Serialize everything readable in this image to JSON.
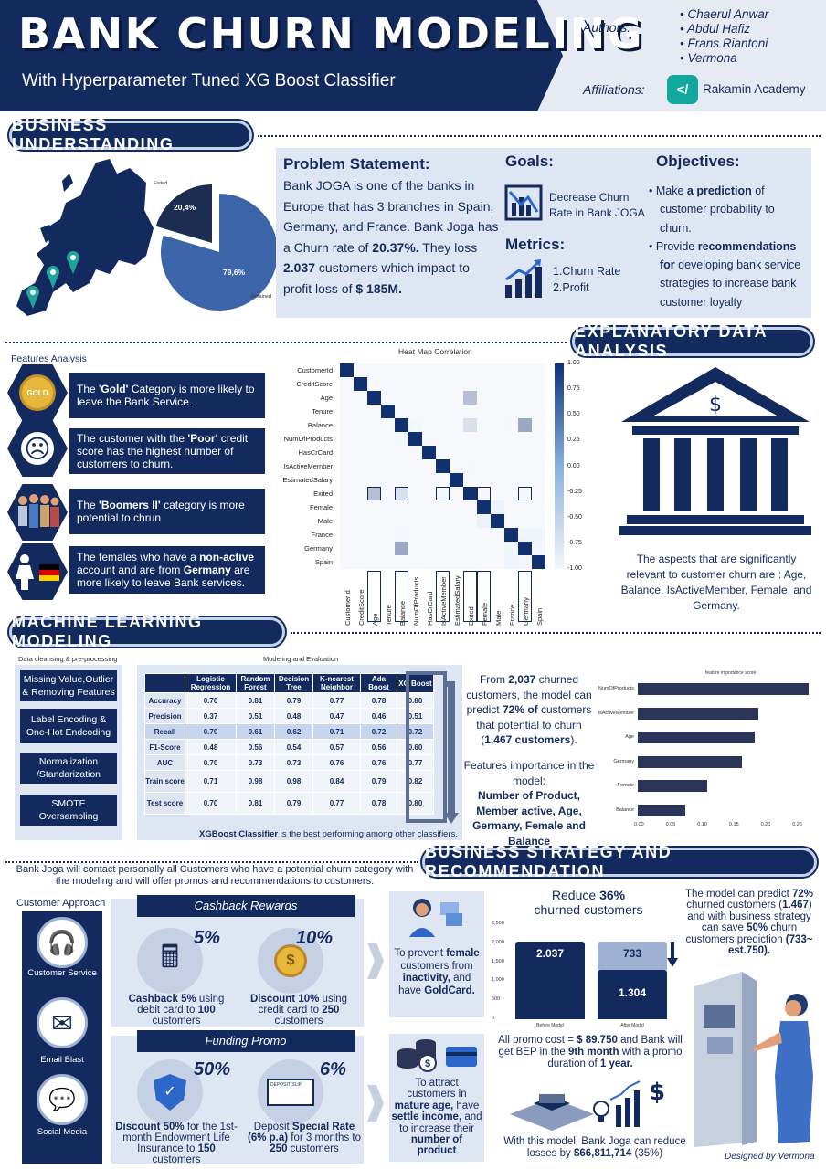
{
  "header": {
    "title": "BANK CHURN MODELING",
    "subtitle": "With Hyperparameter Tuned XG Boost Classifier",
    "authors_label": "Authors:",
    "authors": [
      "Chaerul Anwar",
      "Abdul Hafiz",
      "Frans Riantoni",
      "Vermona"
    ],
    "affiliations_label": "Affiliations:",
    "affiliation": "Rakamin Academy"
  },
  "sections": {
    "business": "BUSINESS UNDERSTANDING",
    "eda": "EXPLANATORY DATA ANALYSIS",
    "ml": "MACHINE LEARNING MODELING",
    "strategy": "BUSINESS STRATEGY AND RECOMMENDATION"
  },
  "pie": {
    "exited_label": "Exited",
    "retained_label": "Retained",
    "exited_value": "20,4%",
    "retained_value": "79,6%",
    "exited_fraction": 0.204
  },
  "problem": {
    "title": "Problem Statement:",
    "p1": "Bank JOGA is one of the banks in Europe that has 3 branches in Spain, Germany, and France. Bank Joga has a Churn rate of ",
    "rate": "20.37%.",
    "p2": " They loss ",
    "customers": "2.037",
    "p3": " customers which impact to profit loss of ",
    "loss": "$ 185M."
  },
  "goals": {
    "title": "Goals:",
    "text": "Decrease Churn Rate in Bank JOGA"
  },
  "metrics": {
    "title": "Metrics:",
    "items": [
      "1.Churn Rate",
      "2.Profit"
    ]
  },
  "objectives": {
    "title": "Objectives:",
    "i1a": "Make ",
    "i1b": "a prediction",
    "i1c": " of customer probability to churn.",
    "i2a": "Provide ",
    "i2b": "recommendations for",
    "i2c": " developing bank service strategies to increase bank customer loyalty"
  },
  "features": {
    "title": "Features Analysis",
    "f1a": "The '",
    "f1b": "Gold'",
    "f1c": " Category is more likely to leave the Bank Service.",
    "f2a": "The customer with the ",
    "f2b": "'Poor'",
    "f2c": " credit score has the highest number of customers to churn.",
    "f3a": "The ",
    "f3b": "'Boomers II'",
    "f3c": " category is more potential to chrun",
    "f4a": "The females who have a ",
    "f4b": "non-active",
    "f4c": " account and are from ",
    "f4d": "Germany",
    "f4e": " are more likely to leave Bank services.",
    "gold_badge": "GOLD"
  },
  "heatmap": {
    "title": "Heat Map Correlation",
    "labels": [
      "CustomerId",
      "CreditScore",
      "Age",
      "Tenure",
      "Balance",
      "NumOfProducts",
      "HasCrCard",
      "IsActiveMember",
      "EstimatedSalary",
      "Exited",
      "Female",
      "Male",
      "France",
      "Germany",
      "Spain"
    ],
    "xlabels": [
      "CustomerId",
      "CreditScore",
      "Age",
      "Tenure",
      "Balance",
      "NumOfProducts",
      "HasCrCard",
      "IsActiveMember",
      "EstimatedSalary",
      "Exited",
      "Female",
      "Male",
      "France",
      "Germany",
      "Spain"
    ],
    "scale": [
      "1.00",
      "0.75",
      "0.50",
      "0.25",
      "0.00",
      "-0.25",
      "-0.50",
      "-0.75",
      "-1.00"
    ],
    "highlight_values": [
      "0.28",
      "0.12",
      "-0.16",
      "1.00",
      "-0.11",
      "0.17"
    ]
  },
  "eda_note": "The aspects that are significantly relevant to customer churn are : Age, Balance, IsActiveMember, Female, and Germany.",
  "ml": {
    "prep_title": "Data cleansing & pre-processing",
    "eval_title": "Modeling and Evaluation",
    "prep": [
      "Missing Value,Outlier & Removing Features",
      "Label Encoding & One-Hot Endcoding",
      "Normalization /Standarization",
      "SMOTE Oversampling"
    ],
    "columns": [
      "",
      "Logistic Regression",
      "Random Forest",
      "Decision Tree",
      "K-nearest Neighbor",
      "Ada Boost",
      "XG Boost"
    ],
    "rows": [
      [
        "Accuracy",
        "0.70",
        "0.81",
        "0.79",
        "0.77",
        "0.78",
        "0.80"
      ],
      [
        "Precision",
        "0.37",
        "0.51",
        "0.48",
        "0.47",
        "0.46",
        "0.51"
      ],
      [
        "Recall",
        "0.70",
        "0.61",
        "0.62",
        "0.71",
        "0.72",
        "0.72"
      ],
      [
        "F1-Score",
        "0.48",
        "0.56",
        "0.54",
        "0.57",
        "0.56",
        "0.60"
      ],
      [
        "AUC",
        "0.70",
        "0.73",
        "0.73",
        "0.76",
        "0.76",
        "0.77"
      ],
      [
        "Train score",
        "0.71",
        "0.98",
        "0.98",
        "0.84",
        "0.79",
        "0.82"
      ],
      [
        "Test score",
        "0.70",
        "0.81",
        "0.79",
        "0.77",
        "0.78",
        "0.80"
      ]
    ],
    "best_a": "XGBoost Classifier",
    "best_b": " is the best performing among other classifiers.",
    "desc_a": "From ",
    "desc_b": "2,037",
    "desc_c": " churned customers, the model can predict ",
    "desc_d": "72% of",
    "desc_e": " customers that potential to churn (",
    "desc_f": "1.467 customers",
    "desc_g": ").",
    "fi_a": "Features importance in the model:",
    "fi_b": "Number of Product, Member active, Age, Germany, Female and Balance"
  },
  "fi": {
    "title": "feature importance score",
    "labels": [
      "NumOfProducts",
      "IsActiveMember",
      "Age",
      "Germany",
      "Female",
      "Balance"
    ],
    "values": [
      0.27,
      0.19,
      0.185,
      0.165,
      0.11,
      0.075
    ],
    "ticks": [
      "0.00",
      "0.05",
      "0.10",
      "0.15",
      "0.20",
      "0.25"
    ]
  },
  "strategy": {
    "intro": "Bank Joga will contact personally all Customers who have a potential churn category with the modeling and will offer promos and recommendations to customers.",
    "approach_title": "Customer Approach",
    "channels": [
      "Customer Service",
      "Email Blast",
      "Social Media"
    ],
    "cashback_title": "Cashback Rewards",
    "cb1_pct": "5%",
    "cb1_a": "Cashback 5%",
    "cb1_b": " using debit card to ",
    "cb1_c": "100",
    "cb1_d": " customers",
    "cb2_pct": "10%",
    "cb2_a": "Discount 10%",
    "cb2_b": " using credit card to ",
    "cb2_c": "250",
    "cb2_d": " customers",
    "funding_title": "Funding Promo",
    "fp1_pct": "50%",
    "fp1_a": "Discount 50%",
    "fp1_b": " for the 1st-month Endowment Life Insurance to ",
    "fp1_c": "150",
    "fp1_d": " customers",
    "fp2_pct": "6%",
    "fp2_a": "Deposit ",
    "fp2_b": "Special Rate (6% p.a)",
    "fp2_c": " for 3 months to ",
    "fp2_d": "250",
    "fp2_e": " customers",
    "prevent_a": "To prevent ",
    "prevent_b": "female",
    "prevent_c": " customers from ",
    "prevent_d": "inactivity,",
    "prevent_e": " and have ",
    "prevent_f": "GoldCard.",
    "attract_a": "To attract customers in ",
    "attract_b": "mature age,",
    "attract_c": " have ",
    "attract_d": "settle income,",
    "attract_e": " and to increase their ",
    "attract_f": "number of product",
    "deposit_word": "DEPOSIT SLIP",
    "reduce_a": "Reduce ",
    "reduce_b": "36%",
    "reduce_c": " churned customers",
    "bar_before_value": "2.037",
    "bar_after_top": "733",
    "bar_after_bottom": "1.304",
    "bar_before_label": "Before Model",
    "bar_after_label": "After Model",
    "y_ticks": [
      "2,500",
      "2,000",
      "1,500",
      "1,000",
      "500",
      "0"
    ],
    "bar_before": 2037,
    "bar_after_saved": 733,
    "bar_after_rest": 1304,
    "promo_a": "All promo cost = ",
    "promo_b": "$ 89.750",
    "promo_c": " and Bank will get BEP in the ",
    "promo_d": "9th month",
    "promo_e": " with a promo duration of ",
    "promo_f": "1 year.",
    "reduce_loss_a": "With this model, Bank Joga can reduce losses by ",
    "reduce_loss_b": "$66,811,714",
    "reduce_loss_c": " (35%)",
    "model_a": "The model can predict ",
    "model_b": "72%",
    "model_c": " churned customers (",
    "model_d": "1.467",
    "model_e": ") and with business strategy can save ",
    "model_f": "50%",
    "model_g": " churn customers prediction ",
    "model_h": "(733~ est.750).",
    "designed": "Designed by Vermona"
  }
}
